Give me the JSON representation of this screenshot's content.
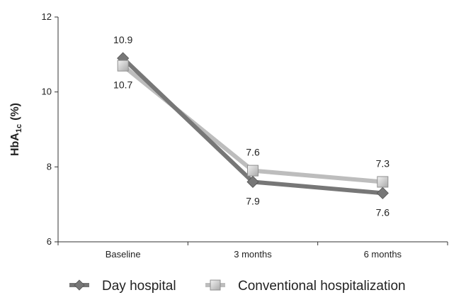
{
  "chart_data": {
    "type": "line",
    "categories": [
      "Baseline",
      "3 months",
      "6 months"
    ],
    "series": [
      {
        "name": "Day hospital",
        "values": [
          10.9,
          7.6,
          7.3
        ],
        "color": "#777777",
        "marker": "diamond"
      },
      {
        "name": "Conventional hospitalization",
        "values": [
          10.7,
          7.9,
          7.6
        ],
        "color": "#bdbdbd",
        "marker": "square"
      }
    ],
    "data_labels": [
      {
        "category": "Baseline",
        "text": "10.9",
        "placement": "above"
      },
      {
        "category": "Baseline",
        "text": "10.7",
        "placement": "below"
      },
      {
        "category": "3 months",
        "text": "7.6",
        "placement": "above"
      },
      {
        "category": "3 months",
        "text": "7.9",
        "placement": "below"
      },
      {
        "category": "6 months",
        "text": "7.3",
        "placement": "above"
      },
      {
        "category": "6 months",
        "text": "7.6",
        "placement": "below"
      }
    ],
    "ylabel_main": "HbA",
    "ylabel_sub": "1c",
    "ylabel_unit": "(%)",
    "xlabel": "",
    "ylim": [
      6,
      12
    ],
    "yticks": [
      6,
      8,
      10,
      12
    ],
    "legend_position": "bottom",
    "grid": false
  }
}
